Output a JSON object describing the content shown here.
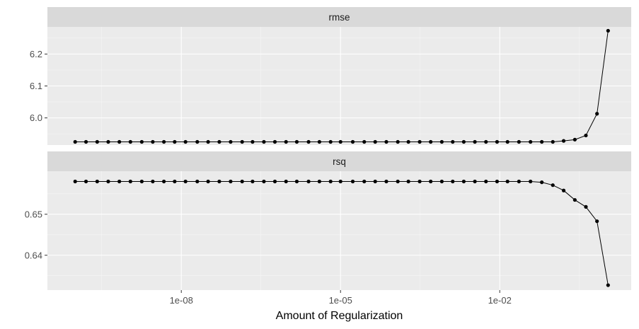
{
  "chart_data": {
    "type": "line",
    "xlabel": "Amount of Regularization",
    "xscale": "log10",
    "xlim": [
      3e-11,
      3
    ],
    "x_ticks": [
      1e-08,
      1e-05,
      0.01
    ],
    "x_tick_labels": [
      "1e-08",
      "1e-05",
      "1e-02"
    ],
    "grid": true,
    "x": [
      1e-10,
      1.6e-10,
      2.6e-10,
      4.2e-10,
      6.8e-10,
      1.1e-09,
      1.8e-09,
      2.9e-09,
      4.7e-09,
      7.5e-09,
      1.2e-08,
      2e-08,
      3.2e-08,
      5.2e-08,
      8.5e-08,
      1.4e-07,
      2.2e-07,
      3.6e-07,
      5.8e-07,
      9.4e-07,
      1.5e-06,
      2.5e-06,
      4e-06,
      6.5e-06,
      1e-05,
      1.7e-05,
      2.8e-05,
      4.5e-05,
      7.3e-05,
      0.00012,
      0.00019,
      0.00031,
      0.0005,
      0.00081,
      0.0013,
      0.0021,
      0.0034,
      0.0055,
      0.0089,
      0.014,
      0.023,
      0.038,
      0.062,
      0.1,
      0.16,
      0.26,
      0.42,
      0.68,
      1.1
    ],
    "panels": [
      {
        "name": "rmse",
        "y_ticks": [
          6.0,
          6.1,
          6.2
        ],
        "y_tick_labels": [
          "6.0",
          "6.1",
          "6.2"
        ],
        "ylim": [
          5.915,
          6.285
        ],
        "values": [
          5.925,
          5.925,
          5.925,
          5.925,
          5.925,
          5.925,
          5.925,
          5.925,
          5.925,
          5.925,
          5.925,
          5.925,
          5.925,
          5.925,
          5.925,
          5.925,
          5.925,
          5.925,
          5.925,
          5.925,
          5.925,
          5.925,
          5.925,
          5.925,
          5.925,
          5.925,
          5.925,
          5.925,
          5.925,
          5.925,
          5.925,
          5.925,
          5.925,
          5.925,
          5.925,
          5.925,
          5.925,
          5.925,
          5.925,
          5.925,
          5.925,
          5.925,
          5.925,
          5.925,
          5.928,
          5.932,
          5.945,
          6.013,
          6.273
        ]
      },
      {
        "name": "rsq",
        "y_ticks": [
          0.64,
          0.65
        ],
        "y_tick_labels": [
          "0.64",
          "0.65"
        ],
        "ylim": [
          0.6315,
          0.6605
        ],
        "values": [
          0.658,
          0.658,
          0.658,
          0.658,
          0.658,
          0.658,
          0.658,
          0.658,
          0.658,
          0.658,
          0.658,
          0.658,
          0.658,
          0.658,
          0.658,
          0.658,
          0.658,
          0.658,
          0.658,
          0.658,
          0.658,
          0.658,
          0.658,
          0.658,
          0.658,
          0.658,
          0.658,
          0.658,
          0.658,
          0.658,
          0.658,
          0.658,
          0.658,
          0.658,
          0.658,
          0.658,
          0.658,
          0.658,
          0.658,
          0.658,
          0.658,
          0.658,
          0.6578,
          0.6571,
          0.6558,
          0.6535,
          0.6518,
          0.6483,
          0.6327
        ]
      }
    ]
  }
}
